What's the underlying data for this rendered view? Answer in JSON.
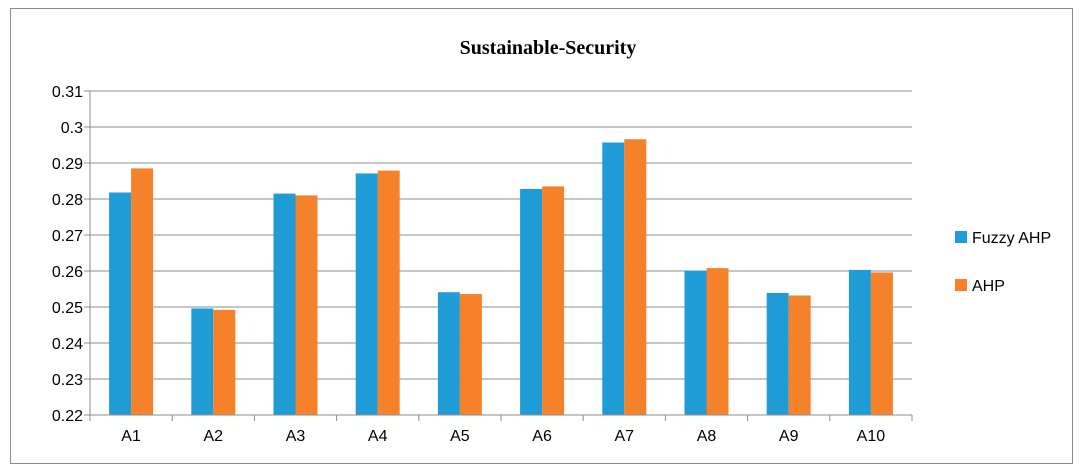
{
  "chart_data": {
    "type": "bar",
    "title": "Sustainable-Security",
    "xlabel": "",
    "ylabel": "",
    "categories": [
      "A1",
      "A2",
      "A3",
      "A4",
      "A5",
      "A6",
      "A7",
      "A8",
      "A9",
      "A10"
    ],
    "series": [
      {
        "name": "Fuzzy AHP",
        "color": "#1f9bd6",
        "values": [
          0.2818,
          0.2496,
          0.2815,
          0.2871,
          0.2541,
          0.2828,
          0.2957,
          0.2601,
          0.2539,
          0.2603
        ]
      },
      {
        "name": "AHP",
        "color": "#f5822a",
        "values": [
          0.2885,
          0.2492,
          0.281,
          0.2879,
          0.2536,
          0.2835,
          0.2966,
          0.2608,
          0.2532,
          0.2596
        ]
      }
    ],
    "ylim": [
      0.22,
      0.31
    ],
    "yticks": [
      "0.22",
      "0.23",
      "0.24",
      "0.25",
      "0.26",
      "0.27",
      "0.28",
      "0.29",
      "0.3",
      "0.31"
    ],
    "grid": true,
    "legend_position": "right"
  }
}
